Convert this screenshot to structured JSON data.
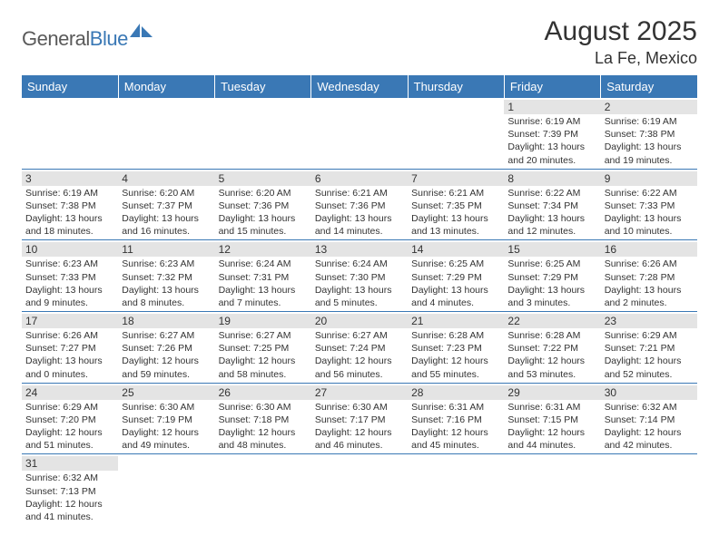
{
  "logo": {
    "part1": "General",
    "part2": "Blue"
  },
  "title": "August 2025",
  "location": "La Fe, Mexico",
  "colors": {
    "header_bg": "#3a78b5",
    "daynum_bg": "#e4e4e4",
    "border": "#3a78b5",
    "logo_gray": "#5a5a5a",
    "logo_blue": "#3a78b5"
  },
  "weekdays": [
    "Sunday",
    "Monday",
    "Tuesday",
    "Wednesday",
    "Thursday",
    "Friday",
    "Saturday"
  ],
  "weeks": [
    [
      null,
      null,
      null,
      null,
      null,
      {
        "n": "1",
        "sr": "Sunrise: 6:19 AM",
        "ss": "Sunset: 7:39 PM",
        "dl": "Daylight: 13 hours and 20 minutes."
      },
      {
        "n": "2",
        "sr": "Sunrise: 6:19 AM",
        "ss": "Sunset: 7:38 PM",
        "dl": "Daylight: 13 hours and 19 minutes."
      }
    ],
    [
      {
        "n": "3",
        "sr": "Sunrise: 6:19 AM",
        "ss": "Sunset: 7:38 PM",
        "dl": "Daylight: 13 hours and 18 minutes."
      },
      {
        "n": "4",
        "sr": "Sunrise: 6:20 AM",
        "ss": "Sunset: 7:37 PM",
        "dl": "Daylight: 13 hours and 16 minutes."
      },
      {
        "n": "5",
        "sr": "Sunrise: 6:20 AM",
        "ss": "Sunset: 7:36 PM",
        "dl": "Daylight: 13 hours and 15 minutes."
      },
      {
        "n": "6",
        "sr": "Sunrise: 6:21 AM",
        "ss": "Sunset: 7:36 PM",
        "dl": "Daylight: 13 hours and 14 minutes."
      },
      {
        "n": "7",
        "sr": "Sunrise: 6:21 AM",
        "ss": "Sunset: 7:35 PM",
        "dl": "Daylight: 13 hours and 13 minutes."
      },
      {
        "n": "8",
        "sr": "Sunrise: 6:22 AM",
        "ss": "Sunset: 7:34 PM",
        "dl": "Daylight: 13 hours and 12 minutes."
      },
      {
        "n": "9",
        "sr": "Sunrise: 6:22 AM",
        "ss": "Sunset: 7:33 PM",
        "dl": "Daylight: 13 hours and 10 minutes."
      }
    ],
    [
      {
        "n": "10",
        "sr": "Sunrise: 6:23 AM",
        "ss": "Sunset: 7:33 PM",
        "dl": "Daylight: 13 hours and 9 minutes."
      },
      {
        "n": "11",
        "sr": "Sunrise: 6:23 AM",
        "ss": "Sunset: 7:32 PM",
        "dl": "Daylight: 13 hours and 8 minutes."
      },
      {
        "n": "12",
        "sr": "Sunrise: 6:24 AM",
        "ss": "Sunset: 7:31 PM",
        "dl": "Daylight: 13 hours and 7 minutes."
      },
      {
        "n": "13",
        "sr": "Sunrise: 6:24 AM",
        "ss": "Sunset: 7:30 PM",
        "dl": "Daylight: 13 hours and 5 minutes."
      },
      {
        "n": "14",
        "sr": "Sunrise: 6:25 AM",
        "ss": "Sunset: 7:29 PM",
        "dl": "Daylight: 13 hours and 4 minutes."
      },
      {
        "n": "15",
        "sr": "Sunrise: 6:25 AM",
        "ss": "Sunset: 7:29 PM",
        "dl": "Daylight: 13 hours and 3 minutes."
      },
      {
        "n": "16",
        "sr": "Sunrise: 6:26 AM",
        "ss": "Sunset: 7:28 PM",
        "dl": "Daylight: 13 hours and 2 minutes."
      }
    ],
    [
      {
        "n": "17",
        "sr": "Sunrise: 6:26 AM",
        "ss": "Sunset: 7:27 PM",
        "dl": "Daylight: 13 hours and 0 minutes."
      },
      {
        "n": "18",
        "sr": "Sunrise: 6:27 AM",
        "ss": "Sunset: 7:26 PM",
        "dl": "Daylight: 12 hours and 59 minutes."
      },
      {
        "n": "19",
        "sr": "Sunrise: 6:27 AM",
        "ss": "Sunset: 7:25 PM",
        "dl": "Daylight: 12 hours and 58 minutes."
      },
      {
        "n": "20",
        "sr": "Sunrise: 6:27 AM",
        "ss": "Sunset: 7:24 PM",
        "dl": "Daylight: 12 hours and 56 minutes."
      },
      {
        "n": "21",
        "sr": "Sunrise: 6:28 AM",
        "ss": "Sunset: 7:23 PM",
        "dl": "Daylight: 12 hours and 55 minutes."
      },
      {
        "n": "22",
        "sr": "Sunrise: 6:28 AM",
        "ss": "Sunset: 7:22 PM",
        "dl": "Daylight: 12 hours and 53 minutes."
      },
      {
        "n": "23",
        "sr": "Sunrise: 6:29 AM",
        "ss": "Sunset: 7:21 PM",
        "dl": "Daylight: 12 hours and 52 minutes."
      }
    ],
    [
      {
        "n": "24",
        "sr": "Sunrise: 6:29 AM",
        "ss": "Sunset: 7:20 PM",
        "dl": "Daylight: 12 hours and 51 minutes."
      },
      {
        "n": "25",
        "sr": "Sunrise: 6:30 AM",
        "ss": "Sunset: 7:19 PM",
        "dl": "Daylight: 12 hours and 49 minutes."
      },
      {
        "n": "26",
        "sr": "Sunrise: 6:30 AM",
        "ss": "Sunset: 7:18 PM",
        "dl": "Daylight: 12 hours and 48 minutes."
      },
      {
        "n": "27",
        "sr": "Sunrise: 6:30 AM",
        "ss": "Sunset: 7:17 PM",
        "dl": "Daylight: 12 hours and 46 minutes."
      },
      {
        "n": "28",
        "sr": "Sunrise: 6:31 AM",
        "ss": "Sunset: 7:16 PM",
        "dl": "Daylight: 12 hours and 45 minutes."
      },
      {
        "n": "29",
        "sr": "Sunrise: 6:31 AM",
        "ss": "Sunset: 7:15 PM",
        "dl": "Daylight: 12 hours and 44 minutes."
      },
      {
        "n": "30",
        "sr": "Sunrise: 6:32 AM",
        "ss": "Sunset: 7:14 PM",
        "dl": "Daylight: 12 hours and 42 minutes."
      }
    ],
    [
      {
        "n": "31",
        "sr": "Sunrise: 6:32 AM",
        "ss": "Sunset: 7:13 PM",
        "dl": "Daylight: 12 hours and 41 minutes."
      },
      null,
      null,
      null,
      null,
      null,
      null
    ]
  ]
}
